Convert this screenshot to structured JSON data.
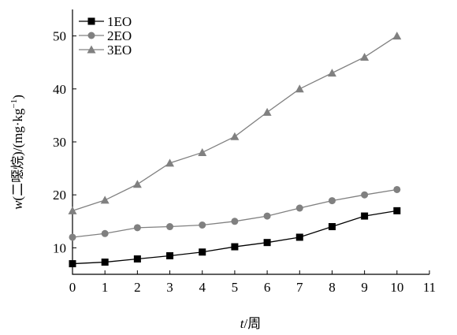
{
  "chart_data": {
    "type": "line",
    "x": [
      0,
      1,
      2,
      3,
      4,
      5,
      6,
      7,
      8,
      9,
      10
    ],
    "xlim": [
      0,
      11
    ],
    "ylim": [
      5,
      55
    ],
    "xticks": [
      0,
      1,
      2,
      3,
      4,
      5,
      6,
      7,
      8,
      9,
      10,
      11
    ],
    "yticks": [
      10,
      20,
      30,
      40,
      50
    ],
    "xlabel_var": "t",
    "xlabel_unit": "/周",
    "ylabel_var": "w",
    "ylabel_rest": "(二噁烷)/(mg·kg",
    "ylabel_sup": "−1",
    "ylabel_close": ")",
    "legend_position": "top-left",
    "grid": false,
    "series": [
      {
        "name": "1EO",
        "marker": "square",
        "color": "#000000",
        "values": [
          7.0,
          7.3,
          7.9,
          8.5,
          9.2,
          10.2,
          11.0,
          12.0,
          14.0,
          16.0,
          17.0
        ]
      },
      {
        "name": "2EO",
        "marker": "circle",
        "color": "#808080",
        "values": [
          12.0,
          12.7,
          13.8,
          14.0,
          14.3,
          15.0,
          16.0,
          17.5,
          18.9,
          20.0,
          21.0
        ]
      },
      {
        "name": "3EO",
        "marker": "triangle",
        "color": "#808080",
        "values": [
          17.0,
          19.0,
          22.0,
          26.0,
          28.0,
          31.0,
          35.6,
          40.0,
          43.0,
          46.0,
          50.0
        ]
      }
    ]
  }
}
